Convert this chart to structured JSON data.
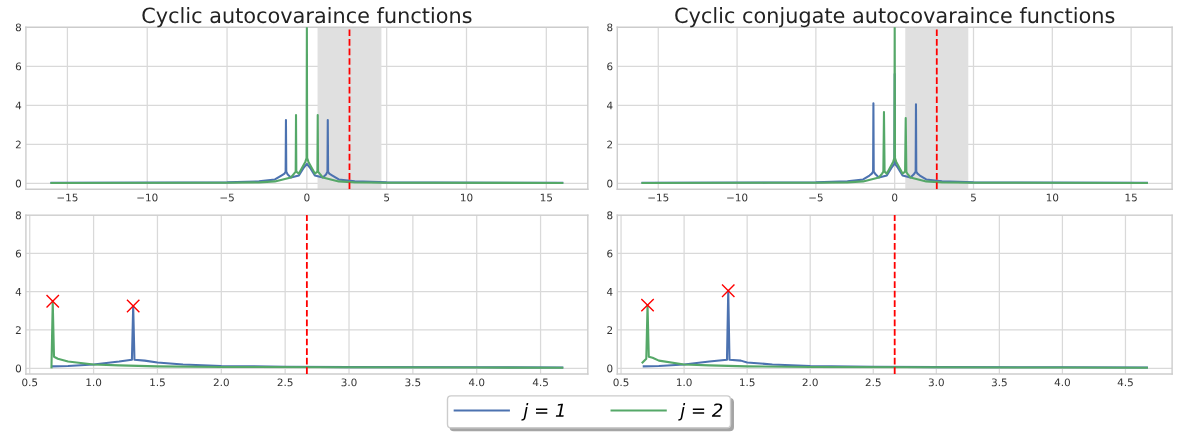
{
  "chart_data": [
    {
      "type": "line",
      "title": "Cyclic autocovaraince functions",
      "grid": true,
      "legend": "bottom",
      "marker": "none",
      "line_style": "solid",
      "xlim": [
        -17.6,
        17.6
      ],
      "ylim": [
        -0.3,
        8
      ],
      "xticks": [
        {
          "value": -15,
          "label": "−15"
        },
        {
          "value": -10,
          "label": "−10"
        },
        {
          "value": -5,
          "label": "−5"
        },
        0,
        5,
        10,
        15
      ],
      "yticks": [
        0,
        2,
        4,
        6,
        8
      ],
      "bands": [
        {
          "axis": "x",
          "from": 0.67,
          "to": 4.67,
          "color": "#e0e0e0"
        }
      ],
      "ref_lines": [
        {
          "axis": "x",
          "value": 2.67,
          "color": "#ff0000",
          "line_style": "dashed"
        }
      ],
      "series": [
        {
          "name": "j = 1",
          "color": "#4c72b0",
          "x": [
            -16,
            -8,
            -5,
            -3,
            -2,
            -1.6,
            -1.4,
            -1.33,
            -1.31,
            -1.29,
            -1.2,
            -1,
            -0.5,
            -0.2,
            0,
            0.2,
            0.5,
            1,
            1.2,
            1.29,
            1.31,
            1.33,
            1.4,
            1.6,
            2,
            3,
            5,
            8,
            16
          ],
          "values": [
            0.03,
            0.04,
            0.05,
            0.1,
            0.2,
            0.4,
            0.5,
            0.6,
            3.25,
            0.6,
            0.45,
            0.3,
            0.4,
            0.8,
            1.0,
            0.8,
            0.4,
            0.3,
            0.45,
            0.6,
            3.25,
            0.6,
            0.5,
            0.4,
            0.2,
            0.1,
            0.05,
            0.04,
            0.03
          ]
        },
        {
          "name": "j = 2",
          "color": "#55a868",
          "x": [
            -16,
            -5,
            -3,
            -2,
            -1,
            -0.8,
            -0.7,
            -0.68,
            -0.66,
            -0.5,
            -0.3,
            -0.1,
            -0.02,
            0,
            0.02,
            0.1,
            0.3,
            0.5,
            0.66,
            0.68,
            0.7,
            0.8,
            1,
            2,
            3,
            5,
            16
          ],
          "values": [
            0.02,
            0.03,
            0.05,
            0.1,
            0.3,
            0.5,
            0.6,
            3.5,
            0.6,
            0.5,
            0.8,
            1.1,
            1.3,
            8,
            1.3,
            1.1,
            0.8,
            0.5,
            0.6,
            3.5,
            0.6,
            0.5,
            0.3,
            0.1,
            0.05,
            0.03,
            0.02
          ]
        }
      ]
    },
    {
      "type": "line",
      "title": "Cyclic conjugate autocovaraince functions",
      "grid": true,
      "legend": "bottom",
      "marker": "none",
      "line_style": "solid",
      "xlim": [
        -17.6,
        17.6
      ],
      "ylim": [
        -0.3,
        8
      ],
      "xticks": [
        {
          "value": -15,
          "label": "−15"
        },
        {
          "value": -10,
          "label": "−10"
        },
        {
          "value": -5,
          "label": "−5"
        },
        0,
        5,
        10,
        15
      ],
      "yticks": [
        0,
        2,
        4,
        6,
        8
      ],
      "bands": [
        {
          "axis": "x",
          "from": 0.67,
          "to": 4.67,
          "color": "#e0e0e0"
        }
      ],
      "ref_lines": [
        {
          "axis": "x",
          "value": 2.67,
          "color": "#ff0000",
          "line_style": "dashed"
        }
      ],
      "series": [
        {
          "name": "j = 1",
          "color": "#4c72b0",
          "x": [
            -16,
            -8,
            -5,
            -3,
            -2,
            -1.6,
            -1.45,
            -1.37,
            -1.35,
            -1.33,
            -1.2,
            -1,
            -0.5,
            -0.2,
            -0.02,
            0,
            0.02,
            0.2,
            0.5,
            1,
            1.2,
            1.33,
            1.35,
            1.37,
            1.45,
            1.6,
            2,
            3,
            5,
            8,
            16
          ],
          "values": [
            0.03,
            0.04,
            0.05,
            0.1,
            0.2,
            0.4,
            0.5,
            0.6,
            4.1,
            0.6,
            0.45,
            0.3,
            0.4,
            0.8,
            1.0,
            5.6,
            1.0,
            0.8,
            0.4,
            0.3,
            0.45,
            0.6,
            4.05,
            0.6,
            0.5,
            0.4,
            0.2,
            0.1,
            0.05,
            0.04,
            0.03
          ]
        },
        {
          "name": "j = 2",
          "color": "#55a868",
          "x": [
            -16,
            -5,
            -3,
            -2,
            -1,
            -0.8,
            -0.72,
            -0.68,
            -0.64,
            -0.5,
            -0.3,
            -0.1,
            -0.02,
            0,
            0.02,
            0.1,
            0.3,
            0.5,
            0.66,
            0.7,
            0.74,
            0.8,
            1,
            2,
            3,
            5,
            16
          ],
          "values": [
            0.02,
            0.03,
            0.05,
            0.1,
            0.3,
            0.5,
            0.6,
            3.65,
            0.6,
            0.5,
            0.8,
            1.1,
            1.3,
            8,
            1.3,
            1.1,
            0.8,
            0.5,
            0.6,
            3.35,
            0.6,
            0.5,
            0.3,
            0.1,
            0.05,
            0.03,
            0.02
          ]
        }
      ]
    },
    {
      "type": "line",
      "grid": true,
      "legend": "bottom",
      "marker": "none",
      "line_style": "solid",
      "xlim": [
        0.47,
        4.87
      ],
      "ylim": [
        -0.3,
        8
      ],
      "xticks": [
        0.5,
        {
          "value": 1,
          "label": "1.0"
        },
        1.5,
        {
          "value": 2,
          "label": "2.0"
        },
        2.5,
        {
          "value": 3,
          "label": "3.0"
        },
        3.5,
        {
          "value": 4,
          "label": "4.0"
        },
        4.5
      ],
      "yticks": [
        0,
        2,
        4,
        6,
        8
      ],
      "ref_lines": [
        {
          "axis": "x",
          "value": 2.67,
          "color": "#ff0000",
          "line_style": "dashed"
        }
      ],
      "series": [
        {
          "name": "j = 1",
          "color": "#4c72b0",
          "x": [
            0.68,
            0.8,
            1.0,
            1.2,
            1.3,
            1.31,
            1.32,
            1.4,
            1.5,
            1.7,
            2.0,
            2.5,
            3.0,
            4.0,
            4.67
          ],
          "values": [
            0.1,
            0.12,
            0.2,
            0.35,
            0.45,
            3.25,
            0.45,
            0.4,
            0.3,
            0.2,
            0.12,
            0.08,
            0.06,
            0.05,
            0.04
          ]
        },
        {
          "name": "j = 2",
          "color": "#55a868",
          "x": [
            0.67,
            0.68,
            0.69,
            0.72,
            0.8,
            1.0,
            1.2,
            1.5,
            2.0,
            3.0,
            4.0,
            4.67
          ],
          "values": [
            0.05,
            3.5,
            0.6,
            0.5,
            0.35,
            0.2,
            0.15,
            0.1,
            0.07,
            0.05,
            0.04,
            0.03
          ]
        },
        {
          "type": "scatter",
          "marker": "cross",
          "color": "#ff0000",
          "x": [
            0.68,
            1.31
          ],
          "values": [
            3.5,
            3.25
          ]
        }
      ]
    },
    {
      "type": "line",
      "grid": true,
      "legend": "bottom",
      "marker": "none",
      "line_style": "solid",
      "xlim": [
        0.47,
        4.87
      ],
      "ylim": [
        -0.3,
        8
      ],
      "xticks": [
        0.5,
        {
          "value": 1,
          "label": "1.0"
        },
        1.5,
        {
          "value": 2,
          "label": "2.0"
        },
        2.5,
        {
          "value": 3,
          "label": "3.0"
        },
        3.5,
        {
          "value": 4,
          "label": "4.0"
        },
        4.5
      ],
      "yticks": [
        0,
        2,
        4,
        6,
        8
      ],
      "ref_lines": [
        {
          "axis": "x",
          "value": 2.67,
          "color": "#ff0000",
          "line_style": "dashed"
        }
      ],
      "series": [
        {
          "name": "j = 1",
          "color": "#4c72b0",
          "x": [
            0.68,
            0.8,
            1.0,
            1.2,
            1.34,
            1.35,
            1.36,
            1.45,
            1.5,
            1.7,
            2.0,
            2.5,
            3.0,
            4.0,
            4.67
          ],
          "values": [
            0.1,
            0.12,
            0.2,
            0.35,
            0.45,
            4.05,
            0.45,
            0.4,
            0.3,
            0.2,
            0.12,
            0.08,
            0.06,
            0.05,
            0.04
          ]
        },
        {
          "name": "j = 2",
          "color": "#55a868",
          "x": [
            0.67,
            0.7,
            0.71,
            0.72,
            0.75,
            0.8,
            1.0,
            1.2,
            1.5,
            2.0,
            3.0,
            4.0,
            4.67
          ],
          "values": [
            0.3,
            0.5,
            3.3,
            0.6,
            0.55,
            0.4,
            0.2,
            0.15,
            0.1,
            0.07,
            0.05,
            0.04,
            0.03
          ]
        },
        {
          "type": "scatter",
          "marker": "cross",
          "color": "#ff0000",
          "x": [
            0.71,
            1.35
          ],
          "values": [
            3.3,
            4.05
          ]
        }
      ]
    }
  ]
}
